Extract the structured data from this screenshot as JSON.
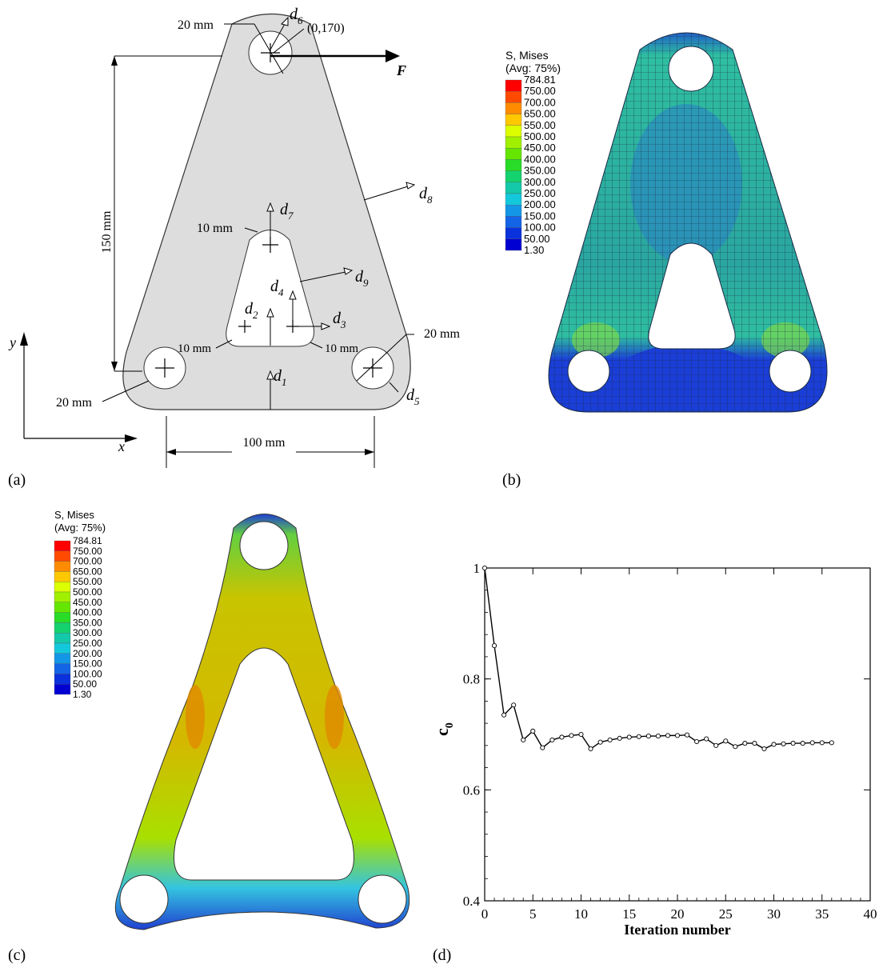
{
  "panels": {
    "a": {
      "label": "(a)",
      "dims": {
        "r_top": "20 mm",
        "coord": "(0,170)",
        "force": "F",
        "height": "150 mm",
        "r_slot_top": "10 mm",
        "r_slot_bl": "10 mm",
        "r_slot_br": "10 mm",
        "r_br": "20 mm",
        "r_bl": "20 mm",
        "width": "100 mm"
      },
      "vars": [
        "d",
        "d",
        "d",
        "d",
        "d",
        "d",
        "d",
        "d",
        "d"
      ],
      "subs": [
        "1",
        "2",
        "3",
        "4",
        "5",
        "6",
        "7",
        "8",
        "9"
      ],
      "axes": {
        "x": "x",
        "y": "y"
      }
    },
    "b": {
      "label": "(b)",
      "legend": {
        "title1": "S, Mises",
        "title2": "(Avg: 75%)",
        "values": [
          "784.81",
          "750.00",
          "700.00",
          "650.00",
          "550.00",
          "500.00",
          "450.00",
          "400.00",
          "350.00",
          "300.00",
          "250.00",
          "200.00",
          "150.00",
          "100.00",
          "50.00",
          "1.30"
        ],
        "colors": [
          "#ff0000",
          "#ff4a00",
          "#ff8c00",
          "#ffc800",
          "#dcff00",
          "#a0f000",
          "#64e600",
          "#28dc28",
          "#14d26e",
          "#14c8aa",
          "#14c8dc",
          "#1496e6",
          "#1464e6",
          "#0a32dc",
          "#0000d2"
        ]
      },
      "colors": {
        "plate": "#2aa6a0",
        "low": "#1a3ed6",
        "mid": "#2fbfa0",
        "high": "#7ad84a",
        "mesh": "#1b2a44"
      }
    },
    "c": {
      "label": "(c)",
      "legend": {
        "title1": "S, Mises",
        "title2": "(Avg: 75%)",
        "values": [
          "784.81",
          "750.00",
          "700.00",
          "650.00",
          "550.00",
          "500.00",
          "450.00",
          "400.00",
          "350.00",
          "300.00",
          "250.00",
          "200.00",
          "150.00",
          "100.00",
          "50.00",
          "1.30"
        ],
        "colors": [
          "#ff0000",
          "#ff4a00",
          "#ff8c00",
          "#ffc800",
          "#dcff00",
          "#a0f000",
          "#64e600",
          "#28dc28",
          "#14d26e",
          "#14c8aa",
          "#14c8dc",
          "#1496e6",
          "#1464e6",
          "#0a32dc",
          "#0000d2"
        ]
      },
      "colors": {
        "arm": "#d4b800",
        "edge": "#9be020",
        "outer": "#34c4e0",
        "tip": "#2040d0",
        "hot": "#e08a00"
      }
    },
    "d": {
      "label": "(d)"
    }
  },
  "chart_data": {
    "type": "line",
    "title": "",
    "xlabel": "Iteration number",
    "ylabel": "c",
    "ylabel_sub": "0",
    "xlim": [
      0,
      40
    ],
    "ylim": [
      0.4,
      1.0
    ],
    "xticks": [
      "0",
      "5",
      "10",
      "15",
      "20",
      "25",
      "30",
      "35",
      "40"
    ],
    "xtick_values": [
      0,
      5,
      10,
      15,
      20,
      25,
      30,
      35,
      40
    ],
    "yticks": [
      "0.4",
      "0.6",
      "0.8",
      "1"
    ],
    "ytick_values": [
      0.4,
      0.6,
      0.8,
      1.0
    ],
    "x": [
      0,
      1,
      2,
      3,
      4,
      5,
      6,
      7,
      8,
      9,
      10,
      11,
      12,
      13,
      14,
      15,
      16,
      17,
      18,
      19,
      20,
      21,
      22,
      23,
      24,
      25,
      26,
      27,
      28,
      29,
      30,
      31,
      32,
      33,
      34,
      35,
      36
    ],
    "y": [
      1.0,
      0.86,
      0.735,
      0.753,
      0.69,
      0.706,
      0.676,
      0.69,
      0.695,
      0.698,
      0.7,
      0.674,
      0.686,
      0.69,
      0.693,
      0.695,
      0.696,
      0.697,
      0.697,
      0.698,
      0.698,
      0.699,
      0.687,
      0.692,
      0.68,
      0.688,
      0.678,
      0.684,
      0.684,
      0.674,
      0.682,
      0.683,
      0.684,
      0.684,
      0.685,
      0.685,
      0.685
    ],
    "grid": false,
    "legend": "none",
    "line_color": "#000000"
  }
}
